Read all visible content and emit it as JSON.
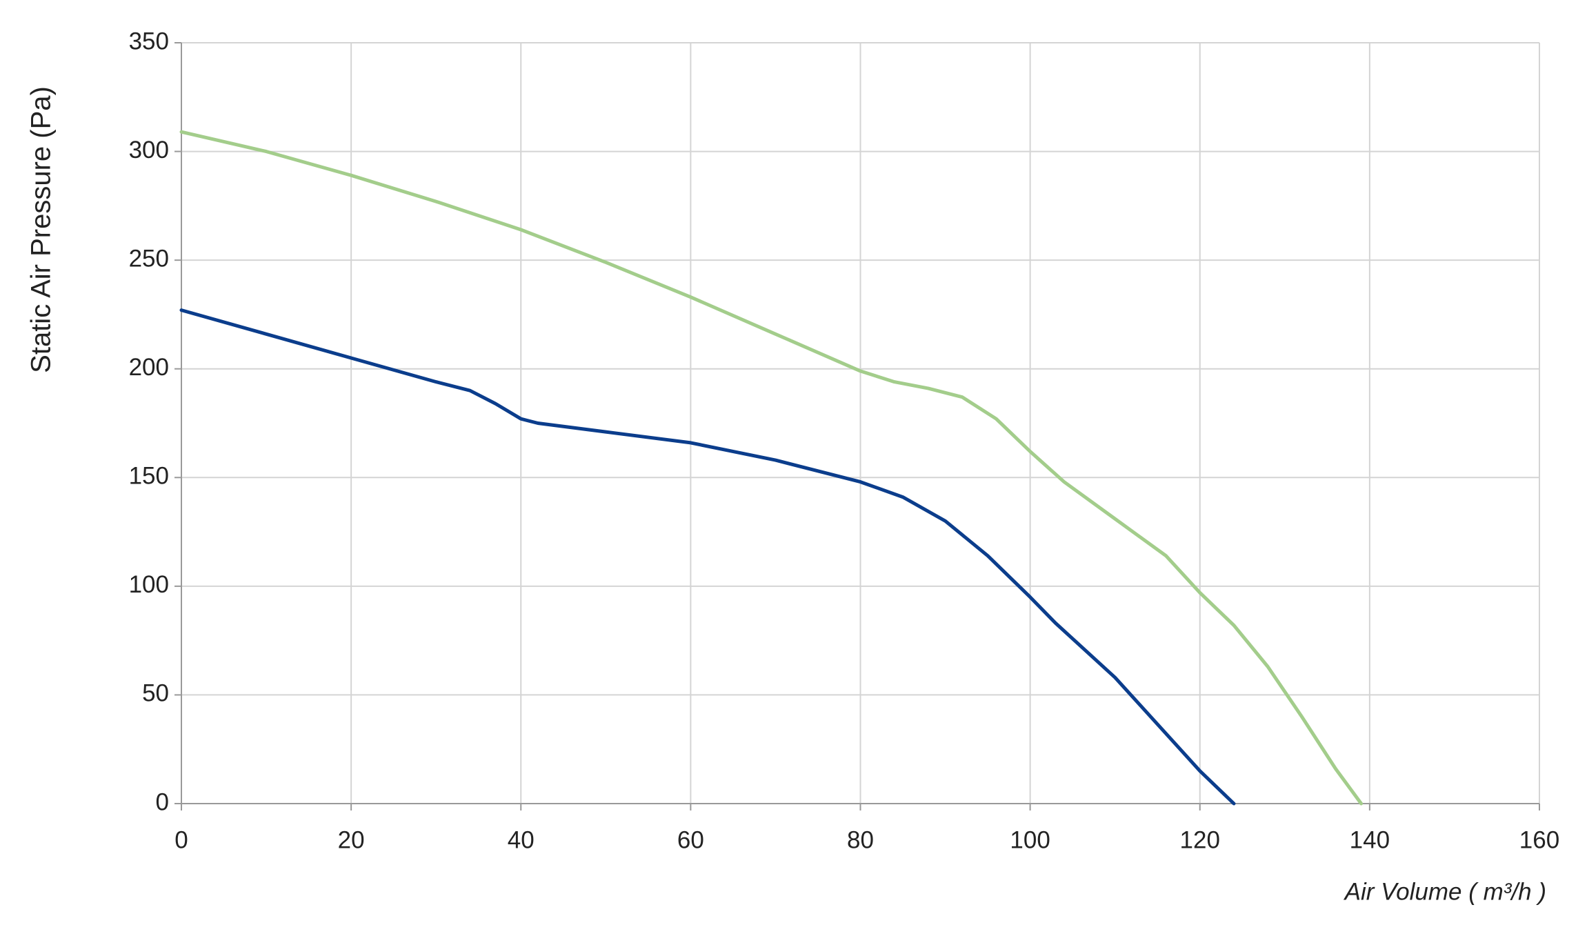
{
  "chart_data": {
    "type": "line",
    "x_label": "Air Volume ( m³/h )",
    "y_label": "Static Air Pressure  (Pa)",
    "xlim": [
      0,
      160
    ],
    "xticks": [
      0,
      20,
      40,
      60,
      80,
      100,
      120,
      140,
      160
    ],
    "ylim": [
      0,
      350
    ],
    "yticks": [
      0,
      50,
      100,
      150,
      200,
      250,
      300,
      350
    ],
    "grid": true,
    "series": [
      {
        "color": "#a3cd8b",
        "x": [
          0,
          10,
          20,
          30,
          40,
          50,
          60,
          70,
          80,
          84,
          88,
          92,
          96,
          100,
          104,
          110,
          116,
          120,
          124,
          128,
          132,
          136,
          139
        ],
        "values": [
          309,
          300,
          289,
          277,
          264,
          249,
          233,
          216,
          199,
          194,
          191,
          187,
          177,
          162,
          148,
          131,
          114,
          97,
          82,
          63,
          40,
          16,
          0
        ]
      },
      {
        "color": "#0b3d8c",
        "x": [
          0,
          10,
          20,
          30,
          34,
          37,
          40,
          42,
          50,
          60,
          70,
          80,
          85,
          90,
          95,
          100,
          103,
          110,
          120,
          124
        ],
        "values": [
          227,
          216,
          205,
          194,
          190,
          184,
          177,
          175,
          171,
          166,
          158,
          148,
          141,
          130,
          114,
          95,
          83,
          58,
          15,
          0
        ]
      }
    ]
  }
}
